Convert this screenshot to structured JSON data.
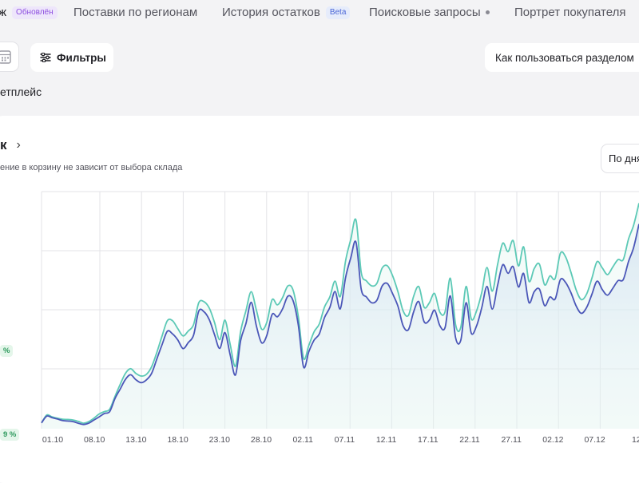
{
  "nav": {
    "items": [
      {
        "label": "ж",
        "badge": "Обновлён",
        "badge_kind": "updated",
        "active": true
      },
      {
        "label": "Поставки по регионам"
      },
      {
        "label": "История остатков",
        "badge": "Beta",
        "badge_kind": "beta"
      },
      {
        "label": "Поисковые запросы",
        "dot": true
      },
      {
        "label": "Портрет покупателя"
      }
    ]
  },
  "toolbar": {
    "calendar_icon": "calendar-icon",
    "filters_label": "Фильтры",
    "help_label": "Как пользоваться разделом"
  },
  "marketplace_label": "етплейс",
  "card": {
    "title": "к",
    "subtitle": "ение в корзину не зависит от выбора склада",
    "period_label": "По дня",
    "left_values": [
      "%",
      "9 %"
    ]
  },
  "colors": {
    "teal": "#5cc9b6",
    "blue": "#4b57b8",
    "badge_purple": "#8d4ee0",
    "green_badge": "#2f9a5e"
  },
  "chart_data": {
    "type": "line",
    "x_ticks": [
      "01.10",
      "08.10",
      "13.10",
      "18.10",
      "23.10",
      "28.10",
      "02.11",
      "07.11",
      "12.11",
      "17.11",
      "22.11",
      "27.11",
      "02.12",
      "07.12",
      "12"
    ],
    "series": [
      {
        "values": [
          0.22,
          0.52,
          0.45,
          0.4,
          0.36,
          0.35,
          0.33,
          0.28,
          0.21,
          0.27,
          0.4,
          0.56,
          0.65,
          0.74,
          1.22,
          1.68,
          2.1,
          2.28,
          2.1,
          2.0,
          2.06,
          2.35,
          2.9,
          3.52,
          4.1,
          4.1,
          3.8,
          3.52,
          3.71,
          3.95,
          4.78,
          4.82,
          4.58,
          4.04,
          3.38,
          4.12,
          3.2,
          2.37,
          3.7,
          4.48,
          5.2,
          4.5,
          3.78,
          4.05,
          4.9,
          4.7,
          4.98,
          5.42,
          5.26,
          4.25,
          2.67,
          3.16,
          3.68,
          3.98,
          4.62,
          5.0,
          5.6,
          5.02,
          6.36,
          7.18,
          7.92,
          5.94,
          5.61,
          5.42,
          5.52,
          6.1,
          6.18,
          5.8,
          5.2,
          4.47,
          4.3,
          5.03,
          5.39,
          4.61,
          4.78,
          5.13,
          4.42,
          4.44,
          5.71,
          3.95,
          3.85,
          5.4,
          4.17,
          4.47,
          5.18,
          6.12,
          5.22,
          6.21,
          7.04,
          6.72,
          7.14,
          6.18,
          6.9,
          5.6,
          6.08,
          6.25,
          5.46,
          5.8,
          5.7,
          6.66,
          6.52,
          5.95,
          5.27,
          4.9,
          5.11,
          5.7,
          6.34,
          6.1,
          5.85,
          6.14,
          6.42,
          6.42,
          7.2,
          7.74,
          8.56
        ]
      },
      {
        "values": [
          0.22,
          0.48,
          0.42,
          0.37,
          0.31,
          0.29,
          0.27,
          0.21,
          0.16,
          0.21,
          0.33,
          0.45,
          0.58,
          0.65,
          1.14,
          1.5,
          1.87,
          2.05,
          1.86,
          1.75,
          1.85,
          2.1,
          2.65,
          3.19,
          3.7,
          3.6,
          3.37,
          3.04,
          3.27,
          3.55,
          4.46,
          4.44,
          4.14,
          3.58,
          3.05,
          3.65,
          2.8,
          2.04,
          3.35,
          3.99,
          4.8,
          3.9,
          3.26,
          3.55,
          4.34,
          4.25,
          4.55,
          5.03,
          4.86,
          3.93,
          2.34,
          2.92,
          3.36,
          3.6,
          4.22,
          4.6,
          5.21,
          4.55,
          5.73,
          6.48,
          7.08,
          5.3,
          5.0,
          4.78,
          4.88,
          5.42,
          5.51,
          5.12,
          4.65,
          3.91,
          3.76,
          4.44,
          4.82,
          4.06,
          4.12,
          4.5,
          3.91,
          3.84,
          5.04,
          3.45,
          3.36,
          4.78,
          3.63,
          3.9,
          4.6,
          5.4,
          4.54,
          5.42,
          6.22,
          5.9,
          6.15,
          5.38,
          5.89,
          4.79,
          5.2,
          5.3,
          4.67,
          5.0,
          4.92,
          5.66,
          5.55,
          5.17,
          4.66,
          4.38,
          4.6,
          5.09,
          5.6,
          5.28,
          5.07,
          5.33,
          5.62,
          5.66,
          6.35,
          6.89,
          7.77
        ]
      }
    ]
  }
}
